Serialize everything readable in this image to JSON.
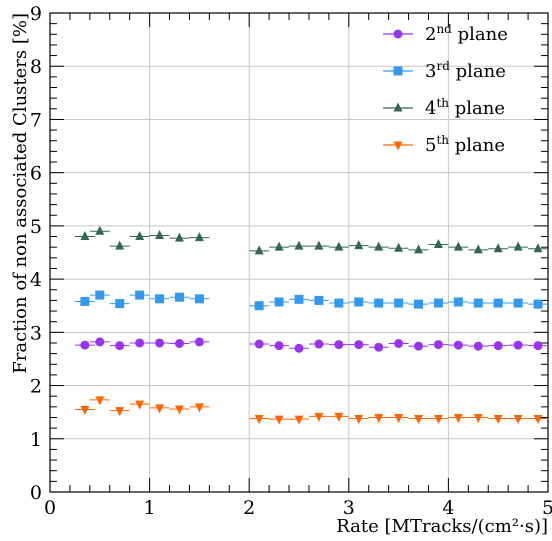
{
  "chart_data": {
    "type": "scatter",
    "title": "",
    "xlabel": "Rate [MTracks/(cm²·s)]",
    "ylabel": "Fraction of non associated Clusters [%]",
    "xlim": [
      0,
      5
    ],
    "ylim": [
      0,
      9
    ],
    "x_ticks": [
      "0",
      "1",
      "2",
      "3",
      "4",
      "5"
    ],
    "y_ticks": [
      "0",
      "1",
      "2",
      "3",
      "4",
      "5",
      "6",
      "7",
      "8",
      "9"
    ],
    "grid": true,
    "legend_position": "top-right",
    "series": [
      {
        "name": "2nd plane",
        "label_base": "2",
        "label_sup": "nd",
        "label_rest": " plane",
        "color": "#9933ee",
        "marker": "circle",
        "x": [
          0.35,
          0.5,
          0.7,
          0.9,
          1.1,
          1.3,
          1.5,
          2.1,
          2.3,
          2.5,
          2.7,
          2.9,
          3.1,
          3.3,
          3.5,
          3.7,
          3.9,
          4.1,
          4.3,
          4.5,
          4.7,
          4.9
        ],
        "y": [
          2.76,
          2.82,
          2.75,
          2.8,
          2.8,
          2.79,
          2.82,
          2.78,
          2.75,
          2.7,
          2.78,
          2.77,
          2.77,
          2.72,
          2.79,
          2.74,
          2.77,
          2.76,
          2.74,
          2.75,
          2.76,
          2.75
        ]
      },
      {
        "name": "3rd plane",
        "label_base": "3",
        "label_sup": "rd",
        "label_rest": " plane",
        "color": "#3399ee",
        "marker": "square",
        "x": [
          0.35,
          0.5,
          0.7,
          0.9,
          1.1,
          1.3,
          1.5,
          2.1,
          2.3,
          2.5,
          2.7,
          2.9,
          3.1,
          3.3,
          3.5,
          3.7,
          3.9,
          4.1,
          4.3,
          4.5,
          4.7,
          4.9
        ],
        "y": [
          3.58,
          3.7,
          3.54,
          3.7,
          3.63,
          3.66,
          3.63,
          3.5,
          3.57,
          3.62,
          3.6,
          3.55,
          3.57,
          3.55,
          3.55,
          3.53,
          3.55,
          3.57,
          3.55,
          3.55,
          3.55,
          3.53
        ]
      },
      {
        "name": "4th plane",
        "label_base": "4",
        "label_sup": "th",
        "label_rest": " plane",
        "color": "#336655",
        "marker": "triangle-up",
        "x": [
          0.35,
          0.5,
          0.7,
          0.9,
          1.1,
          1.3,
          1.5,
          2.1,
          2.3,
          2.5,
          2.7,
          2.9,
          3.1,
          3.3,
          3.5,
          3.7,
          3.9,
          4.1,
          4.3,
          4.5,
          4.7,
          4.9
        ],
        "y": [
          4.8,
          4.9,
          4.62,
          4.8,
          4.82,
          4.77,
          4.78,
          4.53,
          4.6,
          4.62,
          4.62,
          4.6,
          4.63,
          4.6,
          4.58,
          4.55,
          4.65,
          4.6,
          4.55,
          4.57,
          4.6,
          4.57
        ]
      },
      {
        "name": "5th plane",
        "label_base": "5",
        "label_sup": "th",
        "label_rest": " plane",
        "color": "#ff6600",
        "marker": "triangle-down",
        "x": [
          0.35,
          0.5,
          0.7,
          0.9,
          1.1,
          1.3,
          1.5,
          2.1,
          2.3,
          2.5,
          2.7,
          2.9,
          3.1,
          3.3,
          3.5,
          3.7,
          3.9,
          4.1,
          4.3,
          4.5,
          4.7,
          4.9
        ],
        "y": [
          1.55,
          1.73,
          1.53,
          1.65,
          1.58,
          1.56,
          1.6,
          1.38,
          1.37,
          1.37,
          1.42,
          1.42,
          1.38,
          1.4,
          1.4,
          1.38,
          1.38,
          1.4,
          1.4,
          1.38,
          1.38,
          1.38
        ]
      }
    ]
  }
}
